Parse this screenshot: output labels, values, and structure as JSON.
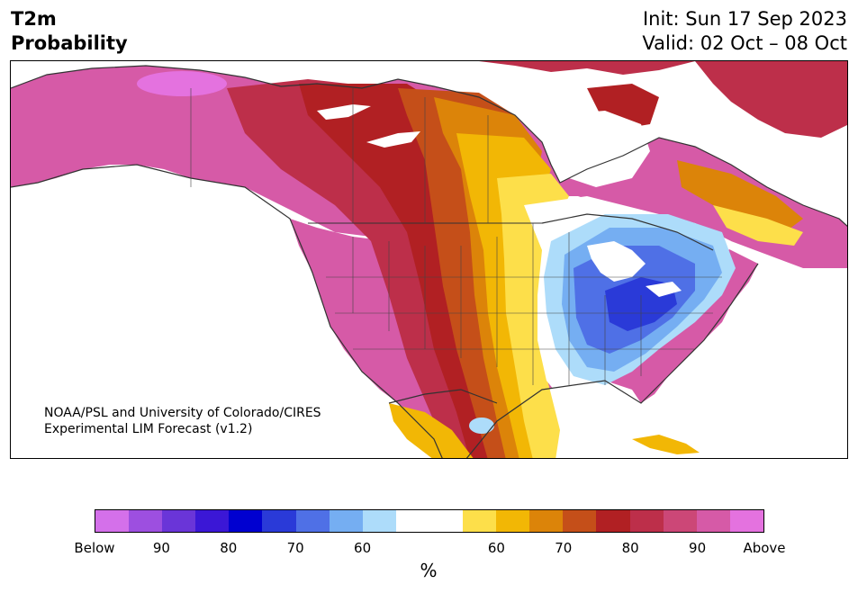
{
  "header": {
    "variable": "T2m",
    "kind": "Probability",
    "init": "Init: Sun 17 Sep 2023",
    "valid": "Valid: 02 Oct – 08 Oct"
  },
  "credit": {
    "line1": "NOAA/PSL and University of Colorado/CIRES",
    "line2": "Experimental LIM Forecast (v1.2)"
  },
  "colorbar": {
    "colors": [
      "#d470ea",
      "#9d4fe0",
      "#6a35d8",
      "#3b17d6",
      "#0000d0",
      "#2a3ad8",
      "#4f70e6",
      "#75aef2",
      "#addcfa",
      "#ffffff",
      "#ffffff",
      "#fddf4a",
      "#f2b705",
      "#dc8409",
      "#c54f19",
      "#b12023",
      "#bd2f4a",
      "#cc4777",
      "#d65aa7",
      "#e472df"
    ],
    "labels": [
      "Below",
      "90",
      "80",
      "70",
      "60",
      "60",
      "70",
      "80",
      "90",
      "Above"
    ],
    "unit": "%"
  },
  "map": {
    "colors": {
      "above_max": "#e472df",
      "above_90": "#d65aa7",
      "above_85": "#cc4777",
      "above_80": "#bd2f4a",
      "above_75": "#b12023",
      "above_70": "#c54f19",
      "above_65": "#dc8409",
      "above_60": "#f2b705",
      "above_55": "#fddf4a",
      "below_55": "#addcfa",
      "below_60": "#75aef2",
      "below_65": "#4f70e6",
      "below_70": "#2a3ad8",
      "below_75": "#0000d0"
    }
  }
}
